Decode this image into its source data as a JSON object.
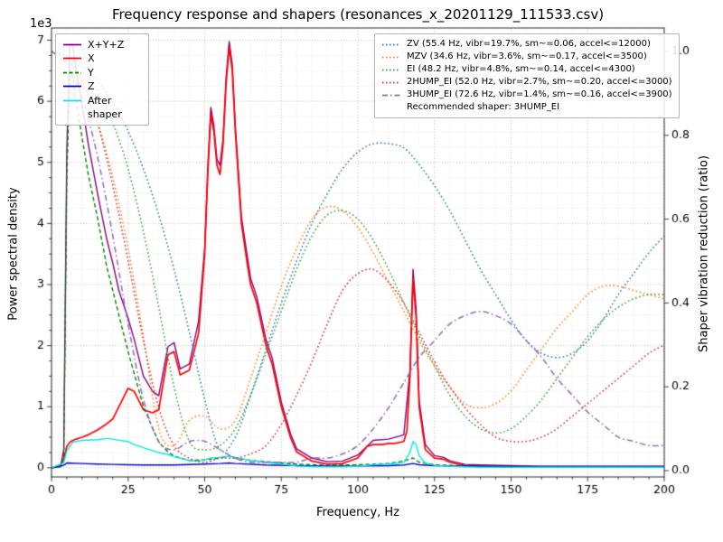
{
  "chart_data": {
    "type": "line",
    "title": "Frequency response and shapers (resonances_x_20201129_111533.csv)",
    "xlabel": "Frequency, Hz",
    "ylabel_left": "Power spectral density",
    "ylabel_right": "Shaper vibration reduction (ratio)",
    "y_left_offset_label": "1e3",
    "xlim": [
      0,
      200
    ],
    "ylim_left": [
      0,
      7000
    ],
    "ylim_right": [
      0,
      1.0
    ],
    "x_ticks": [
      0,
      25,
      50,
      75,
      100,
      125,
      150,
      175,
      200
    ],
    "y_left_ticks": {
      "values": [
        0,
        1000,
        2000,
        3000,
        4000,
        5000,
        6000,
        7000
      ],
      "labels": [
        "0",
        "1",
        "2",
        "3",
        "4",
        "5",
        "6",
        "7"
      ]
    },
    "y_right_ticks": {
      "values": [
        0,
        0.2,
        0.4,
        0.6,
        0.8,
        1.0
      ],
      "labels": [
        "0.0",
        "0.2",
        "0.4",
        "0.6",
        "0.8",
        "1.0"
      ]
    },
    "grid": {
      "on": true,
      "minor_x_step": 5,
      "minor_y_step": 250
    },
    "legend_positions": {
      "psd": "upper left",
      "shapers": "upper right"
    },
    "psd_series": [
      {
        "label": "X+Y+Z",
        "color": "#800080",
        "style": "solid",
        "x": [
          0,
          3,
          4,
          5,
          6,
          7,
          8,
          10,
          12,
          15,
          18,
          20,
          22,
          25,
          27,
          30,
          33,
          35,
          38,
          40,
          42,
          45,
          48,
          50,
          51,
          52,
          53,
          54,
          55,
          56,
          57,
          58,
          59,
          60,
          62,
          65,
          67,
          70,
          72,
          75,
          78,
          80,
          85,
          90,
          95,
          100,
          105,
          110,
          115,
          117,
          118,
          119,
          120,
          122,
          125,
          128,
          130,
          135,
          140,
          150,
          160,
          170,
          180,
          190,
          200
        ],
        "y": [
          0,
          30,
          300,
          5200,
          6950,
          6900,
          6500,
          5950,
          5300,
          4500,
          3750,
          3350,
          2900,
          2450,
          2100,
          1500,
          1250,
          1180,
          1980,
          2050,
          1620,
          1700,
          2400,
          3600,
          4900,
          5900,
          5600,
          5050,
          4950,
          5400,
          6400,
          6980,
          6600,
          5600,
          4100,
          3100,
          2800,
          2100,
          1800,
          1080,
          560,
          310,
          160,
          100,
          110,
          210,
          450,
          470,
          540,
          1600,
          3250,
          2600,
          1100,
          380,
          200,
          170,
          115,
          55,
          45,
          35,
          25,
          25,
          25,
          25,
          25
        ]
      },
      {
        "label": "X",
        "color": "#ff0000",
        "style": "solid",
        "x": [
          0,
          3,
          4,
          5,
          6,
          7,
          8,
          10,
          12,
          15,
          18,
          20,
          22,
          25,
          27,
          30,
          33,
          35,
          38,
          40,
          42,
          45,
          47,
          48,
          50,
          51,
          52,
          53,
          54,
          55,
          56,
          57,
          58,
          59,
          60,
          62,
          64,
          65,
          67,
          70,
          72,
          75,
          78,
          80,
          85,
          90,
          95,
          100,
          103,
          105,
          108,
          110,
          112,
          115,
          116,
          117,
          118,
          119,
          120,
          122,
          125,
          128,
          130,
          135,
          140,
          150,
          160,
          170,
          180,
          190,
          200
        ],
        "y": [
          0,
          20,
          150,
          350,
          420,
          450,
          470,
          500,
          540,
          620,
          720,
          800,
          1000,
          1300,
          1250,
          950,
          900,
          950,
          1850,
          1900,
          1520,
          1600,
          2000,
          2200,
          3500,
          4800,
          5800,
          5500,
          4950,
          4800,
          5300,
          6300,
          6900,
          6500,
          5500,
          4000,
          3300,
          3000,
          2700,
          2000,
          1700,
          1000,
          500,
          260,
          110,
          60,
          70,
          160,
          350,
          380,
          380,
          400,
          400,
          430,
          600,
          1500,
          3100,
          2450,
          1000,
          300,
          160,
          140,
          90,
          35,
          25,
          15,
          10,
          10,
          10,
          10,
          10
        ]
      },
      {
        "label": "Y",
        "color": "#008000",
        "style": "dashed",
        "x": [
          0,
          3,
          4,
          5,
          6,
          7,
          8,
          10,
          12,
          15,
          18,
          20,
          25,
          30,
          33,
          35,
          38,
          40,
          45,
          50,
          55,
          58,
          60,
          65,
          70,
          75,
          80,
          90,
          100,
          110,
          115,
          118,
          120,
          125,
          130,
          140,
          150,
          160,
          180,
          200
        ],
        "y": [
          0,
          20,
          200,
          4800,
          6500,
          6400,
          6000,
          5400,
          4800,
          4100,
          3300,
          2900,
          1900,
          1000,
          650,
          420,
          260,
          190,
          120,
          130,
          160,
          190,
          160,
          120,
          100,
          80,
          60,
          40,
          50,
          70,
          110,
          160,
          90,
          50,
          40,
          25,
          20,
          15,
          15,
          15
        ]
      },
      {
        "label": "Z",
        "color": "#0000cc",
        "style": "solid",
        "x": [
          0,
          4,
          5,
          10,
          15,
          20,
          25,
          30,
          40,
          50,
          55,
          58,
          60,
          70,
          80,
          90,
          100,
          110,
          115,
          118,
          120,
          125,
          130,
          140,
          150,
          160,
          180,
          200
        ],
        "y": [
          0,
          40,
          80,
          70,
          60,
          55,
          50,
          45,
          45,
          60,
          70,
          80,
          70,
          45,
          35,
          30,
          30,
          35,
          45,
          70,
          50,
          35,
          30,
          25,
          20,
          20,
          20,
          20
        ]
      },
      {
        "label": "After shaper",
        "color": "#00e8e8",
        "style": "solid",
        "x": [
          0,
          4,
          5,
          7,
          10,
          15,
          18,
          20,
          22,
          25,
          27,
          30,
          33,
          35,
          38,
          40,
          45,
          48,
          50,
          52,
          55,
          58,
          60,
          63,
          65,
          70,
          75,
          80,
          85,
          90,
          95,
          100,
          105,
          110,
          115,
          117,
          118,
          119,
          120,
          122,
          125,
          130,
          135,
          140,
          150,
          160,
          180,
          200
        ],
        "y": [
          0,
          80,
          280,
          420,
          450,
          460,
          480,
          470,
          450,
          430,
          380,
          330,
          280,
          250,
          220,
          180,
          120,
          110,
          130,
          160,
          170,
          190,
          170,
          140,
          120,
          90,
          60,
          30,
          20,
          15,
          15,
          30,
          50,
          60,
          90,
          250,
          430,
          380,
          200,
          80,
          40,
          25,
          15,
          10,
          10,
          10,
          10,
          10
        ]
      }
    ],
    "shaper_series": {
      "x_start": 0,
      "x_step": 5,
      "series": [
        {
          "label": "ZV (55.4 Hz, vibr=19.7%, sm~=0.06, accel<=12000)",
          "color": "#1f77b4",
          "style": "dotted",
          "y": [
            1.0,
            0.99,
            0.97,
            0.93,
            0.88,
            0.81,
            0.72,
            0.61,
            0.48,
            0.33,
            0.17,
            0.05,
            0.08,
            0.18,
            0.29,
            0.4,
            0.5,
            0.59,
            0.66,
            0.72,
            0.76,
            0.78,
            0.78,
            0.77,
            0.73,
            0.68,
            0.62,
            0.55,
            0.48,
            0.42,
            0.36,
            0.31,
            0.28,
            0.27,
            0.28,
            0.31,
            0.36,
            0.42,
            0.47,
            0.52,
            0.56
          ]
        },
        {
          "label": "MZV (34.6 Hz, vibr=3.6%, sm~=0.17, accel<=3500)",
          "color": "#ff7f0e",
          "style": "dotted",
          "y": [
            1.0,
            0.98,
            0.92,
            0.83,
            0.7,
            0.53,
            0.32,
            0.1,
            0.06,
            0.12,
            0.13,
            0.1,
            0.12,
            0.22,
            0.33,
            0.44,
            0.53,
            0.6,
            0.63,
            0.62,
            0.58,
            0.52,
            0.45,
            0.38,
            0.31,
            0.25,
            0.2,
            0.16,
            0.15,
            0.16,
            0.19,
            0.24,
            0.29,
            0.34,
            0.38,
            0.42,
            0.44,
            0.44,
            0.43,
            0.42,
            0.41
          ]
        },
        {
          "label": "EI (48.2 Hz, vibr=4.8%, sm~=0.14, accel<=4300)",
          "color": "#2ca02c",
          "style": "dotted",
          "y": [
            1.0,
            0.99,
            0.96,
            0.91,
            0.83,
            0.72,
            0.57,
            0.39,
            0.2,
            0.07,
            0.05,
            0.06,
            0.1,
            0.18,
            0.28,
            0.38,
            0.48,
            0.56,
            0.61,
            0.62,
            0.6,
            0.55,
            0.48,
            0.4,
            0.32,
            0.25,
            0.18,
            0.13,
            0.1,
            0.09,
            0.1,
            0.13,
            0.17,
            0.22,
            0.27,
            0.32,
            0.36,
            0.39,
            0.41,
            0.42,
            0.42
          ]
        },
        {
          "label": "2HUMP_EI (52.0 Hz, vibr=2.7%, sm~=0.20, accel<=3000)",
          "color": "#d62728",
          "style": "dotted",
          "y": [
            1.0,
            0.98,
            0.93,
            0.83,
            0.68,
            0.5,
            0.31,
            0.15,
            0.06,
            0.03,
            0.02,
            0.03,
            0.03,
            0.04,
            0.06,
            0.11,
            0.18,
            0.26,
            0.35,
            0.43,
            0.47,
            0.48,
            0.45,
            0.4,
            0.33,
            0.26,
            0.2,
            0.15,
            0.11,
            0.08,
            0.07,
            0.07,
            0.08,
            0.1,
            0.13,
            0.16,
            0.19,
            0.22,
            0.25,
            0.28,
            0.3
          ]
        },
        {
          "label": "3HUMP_EI (72.6 Hz, vibr=1.4%, sm~=0.16, accel<=3900)",
          "color": "#9467bd",
          "style": "dashdot",
          "y": [
            1.0,
            0.97,
            0.89,
            0.75,
            0.56,
            0.35,
            0.17,
            0.07,
            0.05,
            0.07,
            0.07,
            0.05,
            0.03,
            0.02,
            0.02,
            0.02,
            0.02,
            0.03,
            0.03,
            0.04,
            0.06,
            0.1,
            0.15,
            0.21,
            0.27,
            0.31,
            0.35,
            0.37,
            0.38,
            0.37,
            0.35,
            0.31,
            0.27,
            0.22,
            0.18,
            0.14,
            0.11,
            0.08,
            0.07,
            0.06,
            0.06
          ]
        }
      ]
    },
    "recommended_label": "Recommended shaper: 3HUMP_EI"
  }
}
